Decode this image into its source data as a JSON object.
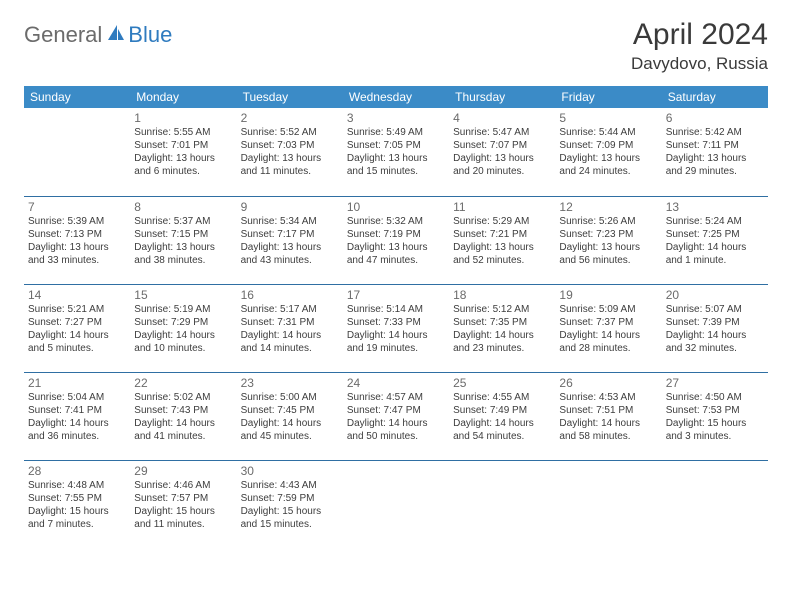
{
  "logo": {
    "general": "General",
    "blue": "Blue"
  },
  "title": "April 2024",
  "location": "Davydovo, Russia",
  "dayHeaders": [
    "Sunday",
    "Monday",
    "Tuesday",
    "Wednesday",
    "Thursday",
    "Friday",
    "Saturday"
  ],
  "colors": {
    "headerBg": "#3b8bc7",
    "headerText": "#ffffff",
    "rowBorder": "#2f6fa3",
    "logoGray": "#6b6b6b",
    "logoBlue": "#2f7bbf"
  },
  "weeks": [
    [
      {
        "num": "",
        "lines": []
      },
      {
        "num": "1",
        "lines": [
          "Sunrise: 5:55 AM",
          "Sunset: 7:01 PM",
          "Daylight: 13 hours",
          "and 6 minutes."
        ]
      },
      {
        "num": "2",
        "lines": [
          "Sunrise: 5:52 AM",
          "Sunset: 7:03 PM",
          "Daylight: 13 hours",
          "and 11 minutes."
        ]
      },
      {
        "num": "3",
        "lines": [
          "Sunrise: 5:49 AM",
          "Sunset: 7:05 PM",
          "Daylight: 13 hours",
          "and 15 minutes."
        ]
      },
      {
        "num": "4",
        "lines": [
          "Sunrise: 5:47 AM",
          "Sunset: 7:07 PM",
          "Daylight: 13 hours",
          "and 20 minutes."
        ]
      },
      {
        "num": "5",
        "lines": [
          "Sunrise: 5:44 AM",
          "Sunset: 7:09 PM",
          "Daylight: 13 hours",
          "and 24 minutes."
        ]
      },
      {
        "num": "6",
        "lines": [
          "Sunrise: 5:42 AM",
          "Sunset: 7:11 PM",
          "Daylight: 13 hours",
          "and 29 minutes."
        ]
      }
    ],
    [
      {
        "num": "7",
        "lines": [
          "Sunrise: 5:39 AM",
          "Sunset: 7:13 PM",
          "Daylight: 13 hours",
          "and 33 minutes."
        ]
      },
      {
        "num": "8",
        "lines": [
          "Sunrise: 5:37 AM",
          "Sunset: 7:15 PM",
          "Daylight: 13 hours",
          "and 38 minutes."
        ]
      },
      {
        "num": "9",
        "lines": [
          "Sunrise: 5:34 AM",
          "Sunset: 7:17 PM",
          "Daylight: 13 hours",
          "and 43 minutes."
        ]
      },
      {
        "num": "10",
        "lines": [
          "Sunrise: 5:32 AM",
          "Sunset: 7:19 PM",
          "Daylight: 13 hours",
          "and 47 minutes."
        ]
      },
      {
        "num": "11",
        "lines": [
          "Sunrise: 5:29 AM",
          "Sunset: 7:21 PM",
          "Daylight: 13 hours",
          "and 52 minutes."
        ]
      },
      {
        "num": "12",
        "lines": [
          "Sunrise: 5:26 AM",
          "Sunset: 7:23 PM",
          "Daylight: 13 hours",
          "and 56 minutes."
        ]
      },
      {
        "num": "13",
        "lines": [
          "Sunrise: 5:24 AM",
          "Sunset: 7:25 PM",
          "Daylight: 14 hours",
          "and 1 minute."
        ]
      }
    ],
    [
      {
        "num": "14",
        "lines": [
          "Sunrise: 5:21 AM",
          "Sunset: 7:27 PM",
          "Daylight: 14 hours",
          "and 5 minutes."
        ]
      },
      {
        "num": "15",
        "lines": [
          "Sunrise: 5:19 AM",
          "Sunset: 7:29 PM",
          "Daylight: 14 hours",
          "and 10 minutes."
        ]
      },
      {
        "num": "16",
        "lines": [
          "Sunrise: 5:17 AM",
          "Sunset: 7:31 PM",
          "Daylight: 14 hours",
          "and 14 minutes."
        ]
      },
      {
        "num": "17",
        "lines": [
          "Sunrise: 5:14 AM",
          "Sunset: 7:33 PM",
          "Daylight: 14 hours",
          "and 19 minutes."
        ]
      },
      {
        "num": "18",
        "lines": [
          "Sunrise: 5:12 AM",
          "Sunset: 7:35 PM",
          "Daylight: 14 hours",
          "and 23 minutes."
        ]
      },
      {
        "num": "19",
        "lines": [
          "Sunrise: 5:09 AM",
          "Sunset: 7:37 PM",
          "Daylight: 14 hours",
          "and 28 minutes."
        ]
      },
      {
        "num": "20",
        "lines": [
          "Sunrise: 5:07 AM",
          "Sunset: 7:39 PM",
          "Daylight: 14 hours",
          "and 32 minutes."
        ]
      }
    ],
    [
      {
        "num": "21",
        "lines": [
          "Sunrise: 5:04 AM",
          "Sunset: 7:41 PM",
          "Daylight: 14 hours",
          "and 36 minutes."
        ]
      },
      {
        "num": "22",
        "lines": [
          "Sunrise: 5:02 AM",
          "Sunset: 7:43 PM",
          "Daylight: 14 hours",
          "and 41 minutes."
        ]
      },
      {
        "num": "23",
        "lines": [
          "Sunrise: 5:00 AM",
          "Sunset: 7:45 PM",
          "Daylight: 14 hours",
          "and 45 minutes."
        ]
      },
      {
        "num": "24",
        "lines": [
          "Sunrise: 4:57 AM",
          "Sunset: 7:47 PM",
          "Daylight: 14 hours",
          "and 50 minutes."
        ]
      },
      {
        "num": "25",
        "lines": [
          "Sunrise: 4:55 AM",
          "Sunset: 7:49 PM",
          "Daylight: 14 hours",
          "and 54 minutes."
        ]
      },
      {
        "num": "26",
        "lines": [
          "Sunrise: 4:53 AM",
          "Sunset: 7:51 PM",
          "Daylight: 14 hours",
          "and 58 minutes."
        ]
      },
      {
        "num": "27",
        "lines": [
          "Sunrise: 4:50 AM",
          "Sunset: 7:53 PM",
          "Daylight: 15 hours",
          "and 3 minutes."
        ]
      }
    ],
    [
      {
        "num": "28",
        "lines": [
          "Sunrise: 4:48 AM",
          "Sunset: 7:55 PM",
          "Daylight: 15 hours",
          "and 7 minutes."
        ]
      },
      {
        "num": "29",
        "lines": [
          "Sunrise: 4:46 AM",
          "Sunset: 7:57 PM",
          "Daylight: 15 hours",
          "and 11 minutes."
        ]
      },
      {
        "num": "30",
        "lines": [
          "Sunrise: 4:43 AM",
          "Sunset: 7:59 PM",
          "Daylight: 15 hours",
          "and 15 minutes."
        ]
      },
      {
        "num": "",
        "lines": []
      },
      {
        "num": "",
        "lines": []
      },
      {
        "num": "",
        "lines": []
      },
      {
        "num": "",
        "lines": []
      }
    ]
  ]
}
